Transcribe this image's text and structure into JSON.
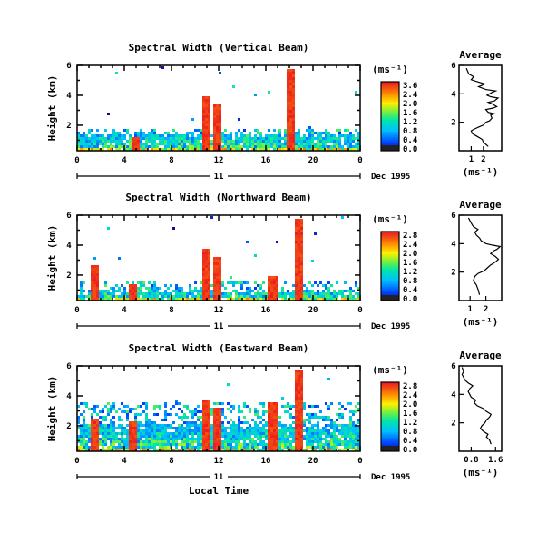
{
  "chart_data": [
    {
      "type": "heatmap",
      "title": "Spectral Width (Vertical Beam)",
      "ylabel": "Height (km)",
      "xlabel": "",
      "x_ticks": [
        "0",
        "4",
        "8",
        "12",
        "16",
        "20",
        "0"
      ],
      "y_ticks": [
        "2",
        "4",
        "6"
      ],
      "xlim": [
        0,
        24
      ],
      "ylim": [
        0.3,
        6
      ],
      "colorbar": {
        "label": "(ms⁻¹)",
        "ticks": [
          "3.6",
          "2.4",
          "2.0",
          "1.6",
          "1.2",
          "0.8",
          "0.4",
          "0.0"
        ],
        "range": [
          0,
          3.6
        ]
      },
      "date_axis": {
        "day": "11",
        "label": "Dec 1995"
      },
      "features": {
        "base_top_km": 1.5,
        "noise_top_km": 1.9,
        "spikes": [
          {
            "x": 4.8,
            "top": 1.3
          },
          {
            "x": 10.8,
            "top": 4.0
          },
          {
            "x": 11.8,
            "top": 3.4
          },
          {
            "x": 18.0,
            "top": 5.9
          }
        ]
      },
      "profile": {
        "title": "Average",
        "xlabel": "(ms⁻¹)",
        "x_ticks": [
          "1",
          "2"
        ],
        "y_ticks": [
          "2",
          "4",
          "6"
        ],
        "xlim": [
          0,
          3.5
        ],
        "ylim": [
          0,
          6
        ],
        "x": [
          2.4,
          2.0,
          1.9,
          1.5,
          1.1,
          1.0,
          1.2,
          1.7,
          2.0,
          2.2,
          2.5,
          2.7,
          2.6,
          2.9,
          2.4,
          2.2,
          2.8,
          3.1,
          2.7,
          2.4,
          2.9,
          3.2,
          2.6,
          2.3,
          2.7,
          3.0,
          2.2,
          1.6,
          1.9,
          2.1,
          1.3,
          1.0,
          1.2,
          0.8,
          0.7,
          0.6
        ],
        "y": [
          0.3,
          0.6,
          0.8,
          1.0,
          1.2,
          1.4,
          1.5,
          1.7,
          1.8,
          2.0,
          2.1,
          2.3,
          2.5,
          2.6,
          2.7,
          2.9,
          3.0,
          3.1,
          3.3,
          3.4,
          3.5,
          3.7,
          3.8,
          3.9,
          4.1,
          4.2,
          4.3,
          4.5,
          4.6,
          4.7,
          4.9,
          5.0,
          5.2,
          5.4,
          5.6,
          5.8
        ]
      }
    },
    {
      "type": "heatmap",
      "title": "Spectral Width (Northward Beam)",
      "ylabel": "Height (km)",
      "xlabel": "",
      "x_ticks": [
        "0",
        "4",
        "8",
        "12",
        "16",
        "20",
        "0"
      ],
      "y_ticks": [
        "2",
        "4",
        "6"
      ],
      "xlim": [
        0,
        24
      ],
      "ylim": [
        0.3,
        6
      ],
      "colorbar": {
        "label": "(ms⁻¹)",
        "ticks": [
          "2.8",
          "2.4",
          "2.0",
          "1.6",
          "1.2",
          "0.8",
          "0.4",
          "0.0"
        ],
        "range": [
          0,
          2.8
        ]
      },
      "date_axis": {
        "day": "11",
        "label": "Dec 1995"
      },
      "features": {
        "base_top_km": 1.0,
        "noise_top_km": 1.6,
        "spikes": [
          {
            "x": 1.3,
            "top": 2.8
          },
          {
            "x": 4.6,
            "top": 1.4
          },
          {
            "x": 10.8,
            "top": 3.9
          },
          {
            "x": 11.8,
            "top": 3.3
          },
          {
            "x": 16.5,
            "top": 2.1
          },
          {
            "x": 18.6,
            "top": 5.8
          }
        ]
      },
      "profile": {
        "title": "Average",
        "xlabel": "(ms⁻¹)",
        "x_ticks": [
          "1",
          "2"
        ],
        "y_ticks": [
          "2",
          "4",
          "6"
        ],
        "xlim": [
          0.3,
          3.0
        ],
        "ylim": [
          0,
          6
        ],
        "x": [
          1.6,
          1.5,
          1.4,
          1.2,
          1.3,
          1.5,
          1.9,
          2.1,
          2.3,
          2.6,
          2.8,
          2.6,
          2.3,
          2.5,
          2.7,
          2.9,
          2.4,
          2.0,
          1.7,
          1.6,
          1.4,
          1.3,
          1.5,
          1.2,
          1.1,
          1.0,
          0.9
        ],
        "y": [
          0.4,
          0.8,
          1.1,
          1.4,
          1.7,
          1.9,
          2.1,
          2.3,
          2.5,
          2.7,
          2.9,
          3.1,
          3.3,
          3.5,
          3.6,
          3.8,
          3.9,
          4.0,
          4.2,
          4.4,
          4.6,
          4.8,
          5.0,
          5.2,
          5.4,
          5.6,
          5.8
        ]
      }
    },
    {
      "type": "heatmap",
      "title": "Spectral Width (Eastward Beam)",
      "ylabel": "Height (km)",
      "xlabel": "Local Time",
      "x_ticks": [
        "0",
        "4",
        "8",
        "12",
        "16",
        "20",
        "0"
      ],
      "y_ticks": [
        "2",
        "4",
        "6"
      ],
      "xlim": [
        0,
        24
      ],
      "ylim": [
        0.3,
        6
      ],
      "colorbar": {
        "label": "(ms⁻¹)",
        "ticks": [
          "2.8",
          "2.4",
          "2.0",
          "1.6",
          "1.2",
          "0.8",
          "0.4",
          "0.0"
        ],
        "range": [
          0,
          2.8
        ]
      },
      "date_axis": {
        "day": "11",
        "label": "Dec 1995"
      },
      "features": {
        "base_top_km": 2.2,
        "noise_top_km": 3.6,
        "spikes": [
          {
            "x": 1.3,
            "top": 2.6
          },
          {
            "x": 4.6,
            "top": 2.4
          },
          {
            "x": 10.8,
            "top": 3.9
          },
          {
            "x": 11.8,
            "top": 3.3
          },
          {
            "x": 16.5,
            "top": 3.6
          },
          {
            "x": 18.6,
            "top": 5.8
          }
        ]
      },
      "profile": {
        "title": "Average",
        "xlabel": "(ms⁻¹)",
        "x_ticks": [
          "0.8",
          "1.6"
        ],
        "y_ticks": [
          "2",
          "4",
          "6"
        ],
        "xlim": [
          0.4,
          1.8
        ],
        "ylim": [
          0,
          6
        ],
        "x": [
          1.45,
          1.4,
          1.3,
          1.35,
          1.2,
          1.1,
          1.15,
          1.25,
          1.3,
          1.4,
          1.45,
          1.3,
          1.2,
          1.0,
          0.9,
          0.95,
          0.8,
          0.75,
          0.7,
          0.75,
          0.85,
          0.7,
          0.6,
          0.55,
          0.5,
          0.55,
          0.5
        ],
        "y": [
          0.5,
          0.8,
          1.0,
          1.2,
          1.4,
          1.6,
          1.8,
          2.0,
          2.2,
          2.4,
          2.6,
          2.8,
          3.0,
          3.2,
          3.4,
          3.6,
          3.8,
          4.0,
          4.2,
          4.4,
          4.6,
          4.8,
          5.0,
          5.2,
          5.4,
          5.6,
          5.9
        ]
      }
    }
  ]
}
